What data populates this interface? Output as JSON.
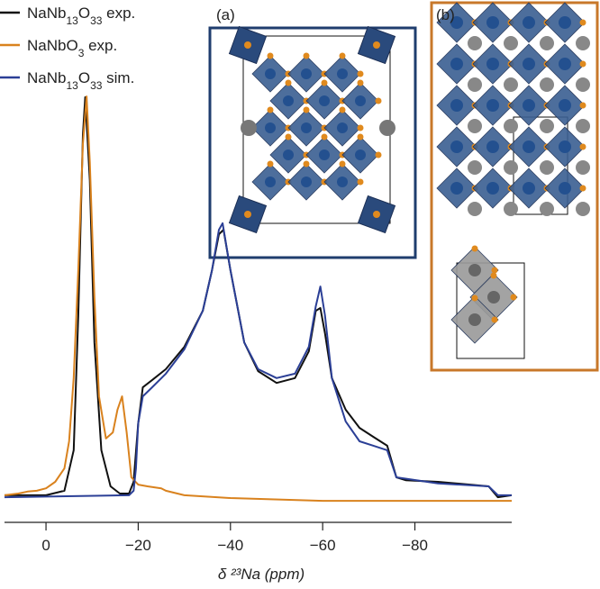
{
  "chart_data": {
    "type": "line",
    "xlabel": "δ ²³Na (ppm)",
    "xlim": [
      9,
      -101
    ],
    "xticks": [
      0,
      {
        "value": -20,
        "label": "−20"
      },
      {
        "value": -40,
        "label": "−40"
      },
      {
        "value": -60,
        "label": "−60"
      },
      {
        "value": -80,
        "label": "−80"
      }
    ],
    "ylim": [
      0,
      1
    ],
    "annotations": [
      "(a)",
      "(b)"
    ],
    "series": [
      {
        "name": "NaNb13O33 exp.",
        "color": "#111111",
        "x": [
          9,
          0,
          -4,
          -6,
          -7,
          -8,
          -8.5,
          -9.5,
          -10.5,
          -12,
          -14,
          -16,
          -18,
          -19,
          -20,
          -21,
          -23,
          -26,
          -30,
          -34,
          -36,
          -37.5,
          -38.5,
          -40,
          -43,
          -46,
          -50,
          -54,
          -57,
          -58.5,
          -59.5,
          -60.5,
          -62,
          -65,
          -68,
          -71,
          -74,
          -76,
          -78,
          -85,
          -92,
          -96,
          -98,
          -101
        ],
        "values": [
          0.007,
          0.007,
          0.018,
          0.118,
          0.451,
          0.896,
          0.989,
          0.784,
          0.384,
          0.118,
          0.029,
          0.011,
          0.011,
          0.04,
          0.184,
          0.273,
          0.291,
          0.318,
          0.373,
          0.462,
          0.562,
          0.651,
          0.662,
          0.562,
          0.384,
          0.313,
          0.284,
          0.296,
          0.362,
          0.462,
          0.469,
          0.407,
          0.296,
          0.218,
          0.173,
          0.151,
          0.129,
          0.051,
          0.044,
          0.04,
          0.033,
          0.029,
          0.002,
          0.007
        ]
      },
      {
        "name": "NaNbO3 exp.",
        "color": "#d9821e",
        "x": [
          9,
          6,
          4,
          2,
          0,
          -2,
          -4,
          -5,
          -6,
          -7,
          -8,
          -8.8,
          -9.5,
          -10.5,
          -11.5,
          -13,
          -14.5,
          -15.5,
          -16.5,
          -17.5,
          -18.5,
          -20,
          -22,
          -25,
          -26,
          -30,
          -40,
          -60,
          -80,
          -101
        ],
        "values": [
          0.007,
          0.011,
          0.016,
          0.018,
          0.024,
          0.04,
          0.073,
          0.14,
          0.296,
          0.563,
          0.873,
          0.991,
          0.829,
          0.496,
          0.251,
          0.147,
          0.162,
          0.218,
          0.251,
          0.162,
          0.051,
          0.033,
          0.029,
          0.024,
          0.018,
          0.007,
          0,
          -0.007,
          -0.007,
          -0.007
        ]
      },
      {
        "name": "NaNb13O33 sim.",
        "color": "#2b3f96",
        "x": [
          9,
          -18,
          -19,
          -19.5,
          -20,
          -21,
          -23,
          -26,
          -30,
          -34,
          -36,
          -37.5,
          -38.3,
          -40,
          -43,
          -46,
          -50,
          -54,
          -57,
          -58.5,
          -59.5,
          -60.5,
          -62,
          -65,
          -68,
          -71,
          -74,
          -76,
          -85,
          -96,
          -98,
          -101
        ],
        "values": [
          0.002,
          0.007,
          0.018,
          0.073,
          0.184,
          0.251,
          0.273,
          0.307,
          0.367,
          0.462,
          0.562,
          0.662,
          0.678,
          0.562,
          0.384,
          0.318,
          0.296,
          0.307,
          0.373,
          0.473,
          0.522,
          0.451,
          0.296,
          0.189,
          0.14,
          0.129,
          0.118,
          0.051,
          0.036,
          0.029,
          0.007,
          0.007
        ]
      }
    ]
  }
}
